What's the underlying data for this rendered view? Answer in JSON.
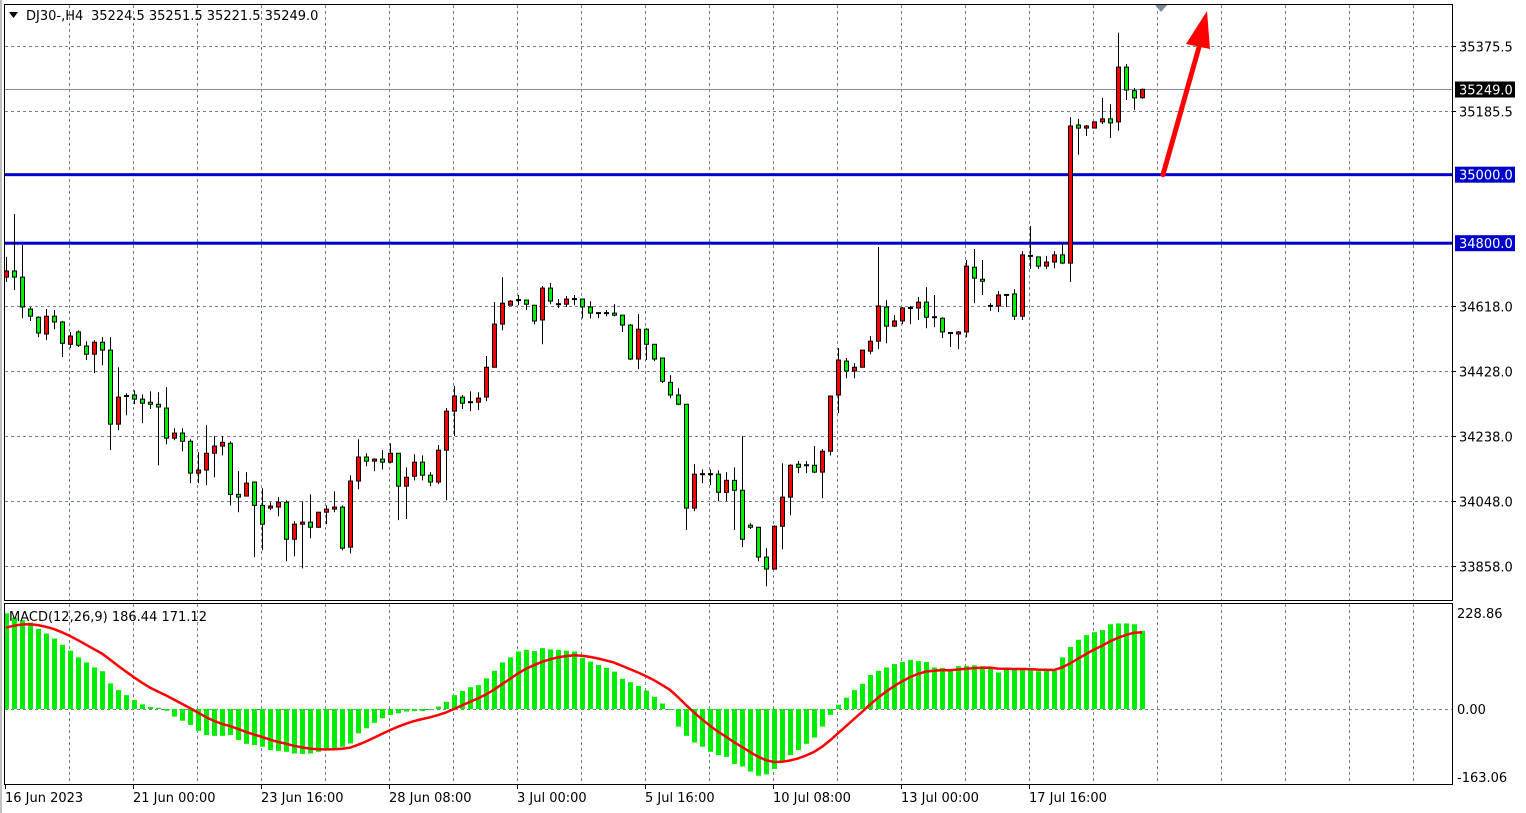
{
  "header": {
    "symbol_timeframe": "DJ30-,H4",
    "ohlc": "35224.5 35251.5 35221.5 35249.0"
  },
  "colors": {
    "up_candle": "#ff0000",
    "down_candle": "#00ee00",
    "level_line": "#0000cc",
    "arrow": "#ff0000",
    "macd_histogram": "#00ee00",
    "macd_signal": "#ff0000",
    "grid": "#708090"
  },
  "price_axis": {
    "ticks": [
      "35375.5",
      "35185.5",
      "34618.0",
      "34428.0",
      "34238.0",
      "34048.0",
      "33858.0"
    ],
    "tick_values": [
      35375.5,
      35185.5,
      34618.0,
      34428.0,
      34238.0,
      34048.0,
      33858.0
    ],
    "current_price_label": "35249.0",
    "current_price": 35249.0
  },
  "levels": [
    {
      "label": "35000.0",
      "price": 35000.0
    },
    {
      "label": "34800.0",
      "price": 34800.0
    }
  ],
  "annotation": {
    "type": "arrow",
    "icon": "arrow-up-right-icon",
    "from_price": 35000.0,
    "direction": "up"
  },
  "time_axis": [
    "16 Jun 2023",
    "21 Jun 00:00",
    "23 Jun 16:00",
    "28 Jun 08:00",
    "3 Jul 00:00",
    "5 Jul 16:00",
    "10 Jul 08:00",
    "13 Jul 00:00",
    "17 Jul 16:00"
  ],
  "macd": {
    "label": "MACD(12,26,9) 186.44 171.12",
    "ticks": [
      "228.86",
      "0.00",
      "-163.06"
    ],
    "tick_values": [
      228.86,
      0,
      -163.06
    ],
    "histogram": [
      228,
      218,
      212,
      206,
      191,
      180,
      168,
      153,
      139,
      123,
      111,
      99,
      90,
      61,
      45,
      33,
      21,
      11,
      5,
      3,
      -4,
      -18,
      -28,
      -38,
      -52,
      -62,
      -64,
      -64,
      -62,
      -74,
      -83,
      -86,
      -90,
      -98,
      -100,
      -102,
      -106,
      -107,
      -106,
      -102,
      -98,
      -94,
      -90,
      -82,
      -58,
      -46,
      -33,
      -22,
      -14,
      -10,
      -6,
      -5,
      -5,
      -2,
      6,
      17,
      33,
      43,
      52,
      57,
      73,
      91,
      111,
      123,
      137,
      141,
      138,
      145,
      142,
      141,
      139,
      137,
      122,
      113,
      105,
      98,
      89,
      72,
      64,
      55,
      44,
      29,
      13,
      -2,
      -42,
      -64,
      -80,
      -90,
      -102,
      -110,
      -114,
      -131,
      -137,
      -149,
      -159,
      -156,
      -143,
      -124,
      -110,
      -98,
      -83,
      -68,
      -42,
      -14,
      10,
      27,
      45,
      60,
      81,
      91,
      99,
      107,
      112,
      117,
      114,
      112,
      99,
      98,
      91,
      102,
      103,
      104,
      102,
      100,
      87,
      93,
      94,
      95,
      94,
      90,
      91,
      91,
      123,
      148,
      165,
      176,
      183,
      188,
      202,
      204,
      204,
      202,
      186.44
    ]
  },
  "chart_data": {
    "type": "candlestick",
    "ohlc_format": [
      "open",
      "high",
      "low",
      "close"
    ],
    "candles": [
      [
        34701,
        34760,
        34687,
        34719
      ],
      [
        34719,
        34885,
        34663,
        34701
      ],
      [
        34701,
        34795,
        34581,
        34614
      ],
      [
        34608,
        34614,
        34573,
        34587
      ],
      [
        34584,
        34587,
        34526,
        34538
      ],
      [
        34535,
        34608,
        34517,
        34587
      ],
      [
        34587,
        34605,
        34549,
        34570
      ],
      [
        34570,
        34573,
        34468,
        34508
      ],
      [
        34505,
        34541,
        34494,
        34529
      ],
      [
        34541,
        34546,
        34497,
        34502
      ],
      [
        34500,
        34514,
        34459,
        34476
      ],
      [
        34476,
        34517,
        34421,
        34511
      ],
      [
        34511,
        34526,
        34444,
        34488
      ],
      [
        34488,
        34526,
        34196,
        34272
      ],
      [
        34272,
        34438,
        34254,
        34351
      ],
      [
        34351,
        34362,
        34298,
        34354
      ],
      [
        34357,
        34371,
        34330,
        34345
      ],
      [
        34345,
        34359,
        34275,
        34333
      ],
      [
        34336,
        34368,
        34316,
        34330
      ],
      [
        34330,
        34365,
        34152,
        34322
      ],
      [
        34319,
        34380,
        34213,
        34231
      ],
      [
        34231,
        34260,
        34225,
        34246
      ],
      [
        34246,
        34260,
        34193,
        34222
      ],
      [
        34222,
        34228,
        34100,
        34129
      ],
      [
        34129,
        34190,
        34100,
        34138
      ],
      [
        34138,
        34269,
        34094,
        34187
      ],
      [
        34187,
        34237,
        34117,
        34208
      ],
      [
        34208,
        34237,
        34181,
        34219
      ],
      [
        34216,
        34222,
        34035,
        34067
      ],
      [
        34067,
        34135,
        34015,
        34059
      ],
      [
        34062,
        34132,
        34062,
        34100
      ],
      [
        34103,
        34103,
        33884,
        34035
      ],
      [
        34035,
        34085,
        33904,
        33980
      ],
      [
        34027,
        34044,
        34021,
        34033
      ],
      [
        34030,
        34059,
        34003,
        34044
      ],
      [
        34044,
        34050,
        33872,
        33936
      ],
      [
        33936,
        33989,
        33886,
        33980
      ],
      [
        33980,
        34047,
        33851,
        33986
      ],
      [
        33986,
        34067,
        33939,
        33971
      ],
      [
        33971,
        34015,
        33971,
        34015
      ],
      [
        34015,
        34035,
        33980,
        34024
      ],
      [
        34024,
        34076,
        34015,
        34030
      ],
      [
        34030,
        34035,
        33904,
        33910
      ],
      [
        33913,
        34123,
        33895,
        34106
      ],
      [
        34106,
        34228,
        34082,
        34176
      ],
      [
        34176,
        34187,
        34149,
        34164
      ],
      [
        34164,
        34172,
        34135,
        34170
      ],
      [
        34170,
        34196,
        34140,
        34161
      ],
      [
        34161,
        34216,
        34158,
        34187
      ],
      [
        34187,
        34187,
        33992,
        34091
      ],
      [
        34091,
        34146,
        33995,
        34117
      ],
      [
        34120,
        34184,
        34108,
        34161
      ],
      [
        34161,
        34181,
        34108,
        34123
      ],
      [
        34123,
        34132,
        34091,
        34103
      ],
      [
        34103,
        34211,
        34097,
        34196
      ],
      [
        34196,
        34319,
        34050,
        34310
      ],
      [
        34310,
        34383,
        34237,
        34354
      ],
      [
        34351,
        34357,
        34316,
        34333
      ],
      [
        34333,
        34368,
        34310,
        34336
      ],
      [
        34336,
        34365,
        34313,
        34348
      ],
      [
        34351,
        34471,
        34339,
        34438
      ],
      [
        34438,
        34628,
        34438,
        34564
      ],
      [
        34564,
        34701,
        34546,
        34625
      ],
      [
        34619,
        34634,
        34619,
        34631
      ],
      [
        34634,
        34649,
        34619,
        34634
      ],
      [
        34634,
        34634,
        34605,
        34622
      ],
      [
        34619,
        34619,
        34564,
        34573
      ],
      [
        34576,
        34675,
        34505,
        34669
      ],
      [
        34669,
        34684,
        34622,
        34631
      ],
      [
        34622,
        34637,
        34611,
        34619
      ],
      [
        34622,
        34646,
        34614,
        34637
      ],
      [
        34637,
        34649,
        34619,
        34637
      ],
      [
        34637,
        34637,
        34581,
        34614
      ],
      [
        34614,
        34631,
        34581,
        34596
      ],
      [
        34596,
        34599,
        34581,
        34593
      ],
      [
        34596,
        34605,
        34587,
        34596
      ],
      [
        34596,
        34622,
        34587,
        34590
      ],
      [
        34590,
        34590,
        34541,
        34561
      ],
      [
        34561,
        34564,
        34459,
        34462
      ],
      [
        34462,
        34593,
        34433,
        34549
      ],
      [
        34549,
        34552,
        34459,
        34505
      ],
      [
        34505,
        34505,
        34456,
        34462
      ],
      [
        34465,
        34465,
        34392,
        34397
      ],
      [
        34394,
        34415,
        34348,
        34357
      ],
      [
        34357,
        34377,
        34327,
        34330
      ],
      [
        34330,
        34330,
        33963,
        34027
      ],
      [
        34027,
        34155,
        34018,
        34126
      ],
      [
        34126,
        34140,
        34100,
        34123
      ],
      [
        34123,
        34140,
        34094,
        34126
      ],
      [
        34126,
        34137,
        34047,
        34073
      ],
      [
        34073,
        34132,
        34047,
        34108
      ],
      [
        34108,
        34146,
        33963,
        34079
      ],
      [
        34079,
        34237,
        33913,
        33936
      ],
      [
        33977,
        33983,
        33966,
        33971
      ],
      [
        33971,
        33971,
        33872,
        33884
      ],
      [
        33884,
        33910,
        33799,
        33849
      ],
      [
        33849,
        33977,
        33849,
        33974
      ],
      [
        33974,
        34158,
        33907,
        34059
      ],
      [
        34059,
        34155,
        34006,
        34152
      ],
      [
        34155,
        34164,
        34129,
        34146
      ],
      [
        34152,
        34164,
        34129,
        34149
      ],
      [
        34152,
        34208,
        34129,
        34132
      ],
      [
        34132,
        34199,
        34056,
        34193
      ],
      [
        34193,
        34354,
        34181,
        34354
      ],
      [
        34357,
        34494,
        34304,
        34459
      ],
      [
        34456,
        34465,
        34406,
        34427
      ],
      [
        34427,
        34450,
        34406,
        34438
      ],
      [
        34438,
        34488,
        34438,
        34488
      ],
      [
        34485,
        34529,
        34476,
        34514
      ],
      [
        34514,
        34789,
        34491,
        34617
      ],
      [
        34614,
        34634,
        34508,
        34558
      ],
      [
        34558,
        34590,
        34555,
        34573
      ],
      [
        34573,
        34614,
        34564,
        34611
      ],
      [
        34608,
        34617,
        34564,
        34611
      ],
      [
        34611,
        34643,
        34576,
        34628
      ],
      [
        34628,
        34672,
        34552,
        34584
      ],
      [
        34584,
        34649,
        34555,
        34581
      ],
      [
        34581,
        34584,
        34523,
        34541
      ],
      [
        34538,
        34541,
        34497,
        34535
      ],
      [
        34535,
        34544,
        34491,
        34541
      ],
      [
        34541,
        34751,
        34526,
        34733
      ],
      [
        34730,
        34783,
        34625,
        34698
      ],
      [
        34695,
        34751,
        34649,
        34689
      ],
      [
        34617,
        34625,
        34602,
        34614
      ],
      [
        34617,
        34660,
        34599,
        34649
      ],
      [
        34649,
        34652,
        34614,
        34646
      ],
      [
        34652,
        34666,
        34576,
        34587
      ],
      [
        34587,
        34777,
        34576,
        34766
      ],
      [
        34763,
        34850,
        34725,
        34760
      ],
      [
        34760,
        34760,
        34725,
        34733
      ],
      [
        34733,
        34763,
        34725,
        34745
      ],
      [
        34745,
        34777,
        34727,
        34766
      ],
      [
        34766,
        34801,
        34739,
        34742
      ],
      [
        34742,
        35168,
        34687,
        35142
      ],
      [
        35145,
        35163,
        35058,
        35136
      ],
      [
        35136,
        35145,
        35113,
        35142
      ],
      [
        35136,
        35154,
        35136,
        35154
      ],
      [
        35154,
        35224,
        35148,
        35163
      ],
      [
        35163,
        35206,
        35107,
        35151
      ],
      [
        35154,
        35414,
        35128,
        35314
      ],
      [
        35314,
        35323,
        35218,
        35247
      ],
      [
        35245,
        35253,
        35189,
        35224
      ],
      [
        35224.5,
        35251.5,
        35221.5,
        35249.0
      ]
    ],
    "y_range": [
      33780,
      35500
    ],
    "grid": true
  }
}
